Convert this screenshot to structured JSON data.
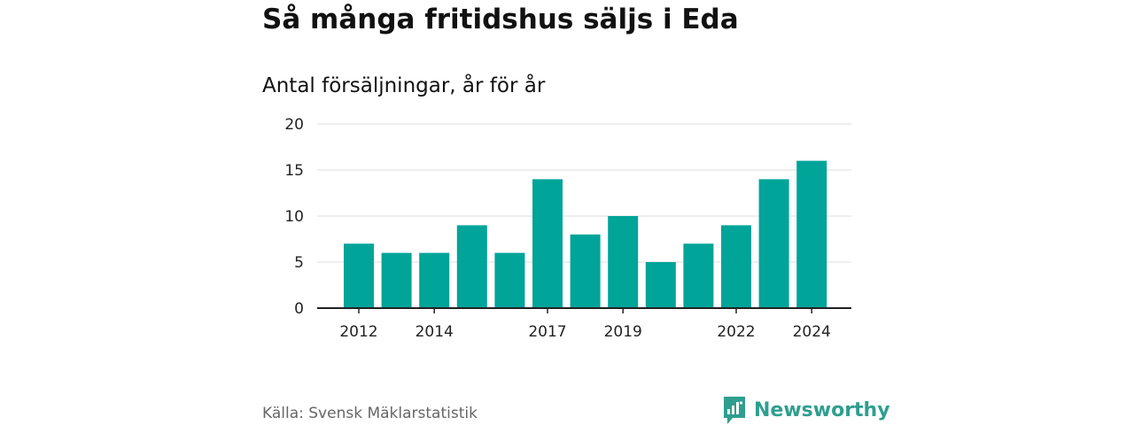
{
  "title": "Så många fritidshus säljs i Eda",
  "subtitle": "Antal försäljningar, år för år",
  "source": "Källa: Svensk Mäklarstatistik",
  "brand": {
    "name": "Newsworthy",
    "color": "#2f9e8f"
  },
  "chart_data": {
    "type": "bar",
    "categories": [
      "2012",
      "2013",
      "2014",
      "2015",
      "2016",
      "2017",
      "2018",
      "2019",
      "2020",
      "2021",
      "2022",
      "2023",
      "2024"
    ],
    "values": [
      7,
      6,
      6,
      9,
      6,
      14,
      8,
      10,
      5,
      7,
      9,
      14,
      16
    ],
    "x_tick_labels": [
      "2012",
      "2014",
      "2017",
      "2019",
      "2022",
      "2024"
    ],
    "y_ticks": [
      0,
      5,
      10,
      15,
      20
    ],
    "ylim": [
      0,
      20
    ],
    "grid": true,
    "bar_color": "#00a499",
    "xlabel": "",
    "ylabel": ""
  }
}
